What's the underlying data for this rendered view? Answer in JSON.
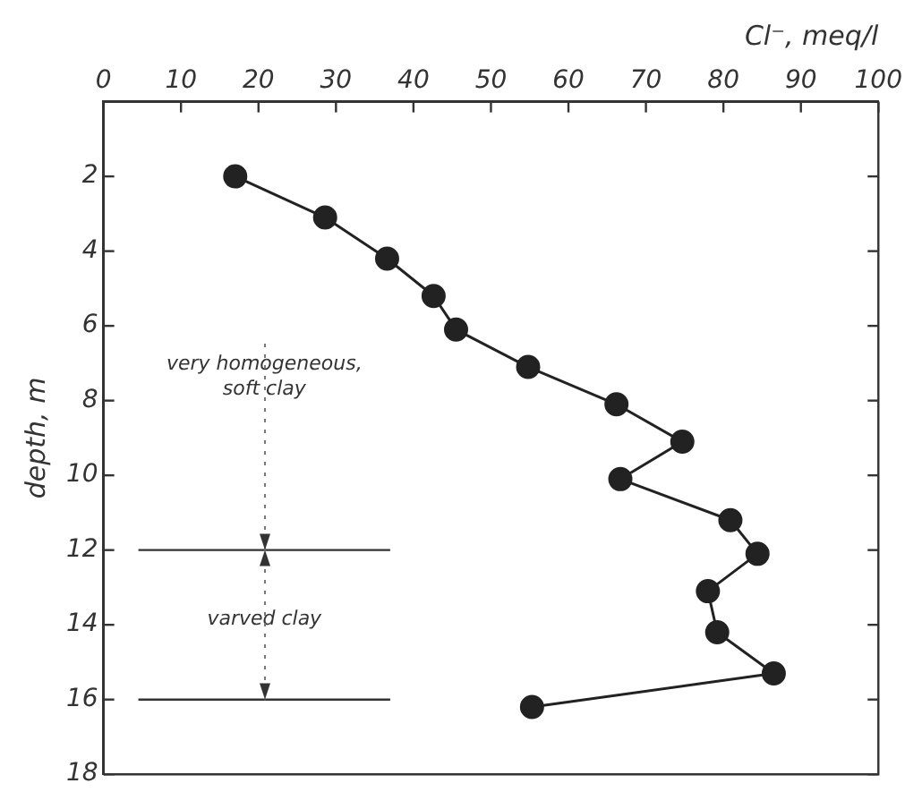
{
  "chart_data": {
    "type": "line",
    "xlabel": "Cl⁻, meq/l",
    "ylabel": "depth, m",
    "x": [
      17,
      28.6,
      36.6,
      42.6,
      45.5,
      54.8,
      66.2,
      74.7,
      66.7,
      80.9,
      84.4,
      78,
      79.2,
      86.5,
      55.3
    ],
    "values": [
      2,
      3.1,
      4.2,
      5.2,
      6.1,
      7.1,
      8.1,
      9.1,
      10.1,
      11.2,
      12.1,
      13.1,
      14.2,
      15.3,
      16.2
    ],
    "color": "#222222",
    "marker": "circle",
    "line_style": "solid",
    "xlim": [
      0,
      100
    ],
    "xticks": [
      0,
      10,
      20,
      30,
      40,
      50,
      60,
      70,
      80,
      90,
      100
    ],
    "ylim": [
      18,
      0
    ],
    "yticks": [
      2,
      4,
      6,
      8,
      10,
      12,
      14,
      16,
      18
    ],
    "grid": false,
    "legend": false,
    "ref_lines": [
      {
        "axis": "y",
        "value": 12
      },
      {
        "axis": "y",
        "value": 16
      }
    ],
    "annotations": [
      "very homogeneous, soft clay",
      "varved clay"
    ]
  }
}
